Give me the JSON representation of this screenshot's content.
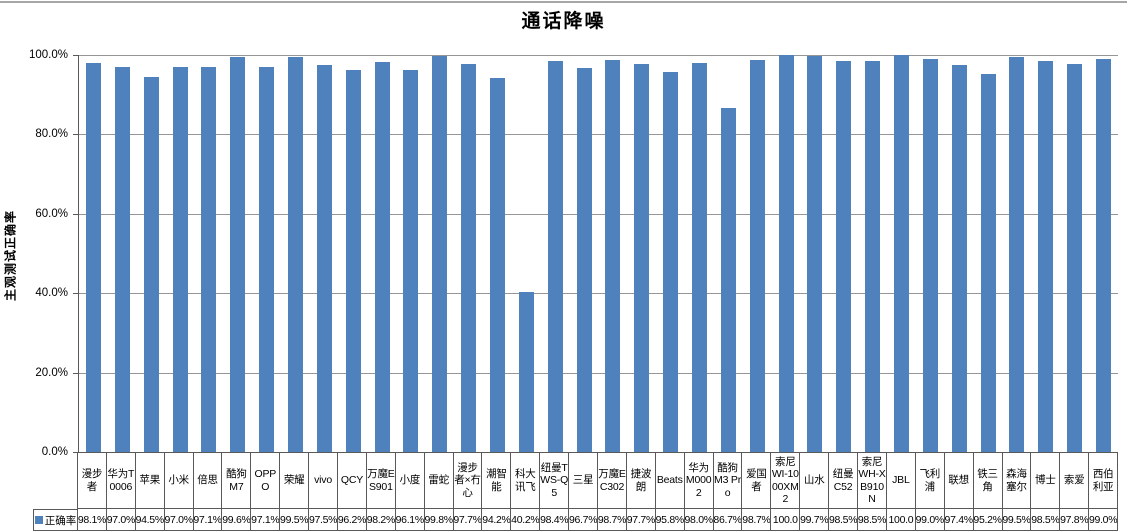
{
  "chart_data": {
    "type": "bar",
    "title": "通话降噪",
    "ylabel": "主观测试正确率",
    "xlabel": "",
    "ylim": [
      0,
      100
    ],
    "grid": true,
    "legend": {
      "label": "正确率",
      "position": "bottom-left"
    },
    "bar_color": "#4F81BD",
    "gridline_color": "#969696",
    "border_color": "#595959",
    "yticks": [
      {
        "value": 100,
        "label": "100.0%"
      },
      {
        "value": 80,
        "label": "80.0%"
      },
      {
        "value": 60,
        "label": "60.0%"
      },
      {
        "value": 40,
        "label": "40.0%"
      },
      {
        "value": 20,
        "label": "20.0%"
      },
      {
        "value": 0,
        "label": "0.0%"
      }
    ],
    "categories": [
      "漫步者",
      "华为T0006",
      "苹果",
      "小米",
      "倍思",
      "酷狗M7",
      "OPPO",
      "荣耀",
      "vivo",
      "QCY",
      "万魔ES901",
      "小度",
      "雷蛇",
      "漫步者×冇心",
      "潮智能",
      "科大讯飞",
      "纽曼TWS-Q5",
      "三星",
      "万魔EC302",
      "捷波朗",
      "Beats",
      "华为M0002",
      "酷狗M3 Pro",
      "爱国者",
      "索尼WI-1000XM2",
      "山水",
      "纽曼C52",
      "索尼WH-XB910N",
      "JBL",
      "飞利浦",
      "联想",
      "铁三角",
      "森海塞尔",
      "博士",
      "索爱",
      "西伯利亚"
    ],
    "values": [
      98.1,
      97.0,
      94.5,
      97.0,
      97.1,
      99.6,
      97.1,
      99.5,
      97.5,
      96.2,
      98.2,
      96.1,
      99.8,
      97.7,
      94.2,
      40.2,
      98.4,
      96.7,
      98.7,
      97.7,
      95.8,
      98.0,
      86.7,
      98.7,
      100.0,
      99.7,
      98.5,
      98.5,
      100.0,
      99.0,
      97.4,
      95.2,
      99.5,
      98.5,
      97.8,
      99.0
    ],
    "value_labels": [
      "98.1%",
      "97.0%",
      "94.5%",
      "97.0%",
      "97.1%",
      "99.6%",
      "97.1%",
      "99.5%",
      "97.5%",
      "96.2%",
      "98.2%",
      "96.1%",
      "99.8%",
      "97.7%",
      "94.2%",
      "40.2%",
      "98.4%",
      "96.7%",
      "98.7%",
      "97.7%",
      "95.8%",
      "98.0%",
      "86.7%",
      "98.7%",
      "100.0",
      "99.7%",
      "98.5%",
      "98.5%",
      "100.0",
      "99.0%",
      "97.4%",
      "95.2%",
      "99.5%",
      "98.5%",
      "97.8%",
      "99.0%"
    ]
  }
}
